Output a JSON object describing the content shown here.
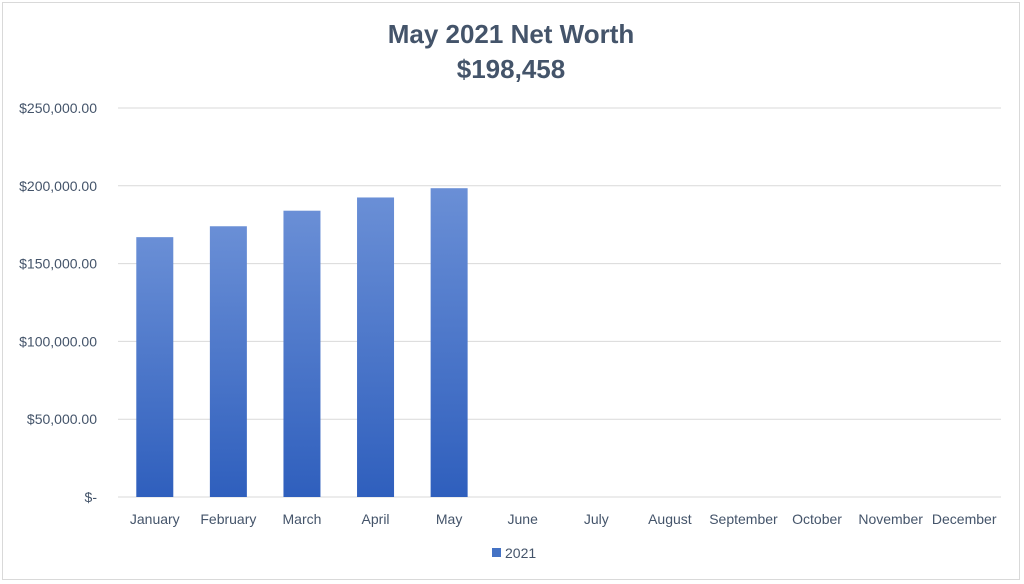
{
  "chart_data": {
    "type": "bar",
    "title": "May 2021 Net Worth",
    "subtitle": "$198,458",
    "categories": [
      "January",
      "February",
      "March",
      "April",
      "May",
      "June",
      "July",
      "August",
      "September",
      "October",
      "November",
      "December"
    ],
    "series": [
      {
        "name": "2021",
        "values": [
          167000,
          174000,
          184000,
          192500,
          198458,
          null,
          null,
          null,
          null,
          null,
          null,
          null
        ]
      }
    ],
    "ylim": [
      0,
      250000
    ],
    "y_ticks": [
      0,
      50000,
      100000,
      150000,
      200000,
      250000
    ],
    "y_tick_labels": [
      "$-",
      "$50,000.00",
      "$100,000.00",
      "$150,000.00",
      "$200,000.00",
      "$250,000.00"
    ],
    "grid": true,
    "legend": "bottom",
    "bar_color_top": "#6a8fd6",
    "bar_color_bottom": "#2f5fbd",
    "legend_color": "#4472c4"
  }
}
